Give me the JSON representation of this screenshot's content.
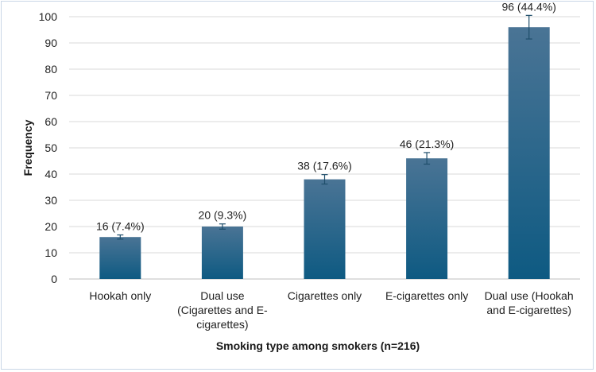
{
  "chart_data": {
    "type": "bar",
    "title": "",
    "xlabel": "Smoking type among smokers (n=216)",
    "ylabel": "Frequency",
    "ylim": [
      0,
      100
    ],
    "yticks": [
      0,
      10,
      20,
      30,
      40,
      50,
      60,
      70,
      80,
      90,
      100
    ],
    "grid": true,
    "categories": [
      [
        "Hookah only"
      ],
      [
        "Dual use",
        "(Cigarettes and E-",
        "cigarettes)"
      ],
      [
        "Cigarettes only"
      ],
      [
        "E-cigarettes only"
      ],
      [
        "Dual use (Hookah",
        "and E-cigarettes)"
      ]
    ],
    "values": [
      16,
      20,
      38,
      46,
      96
    ],
    "data_labels": [
      "16 (7.4%)",
      "20 (9.3%)",
      "38 (17.6%)",
      "46 (21.3%)",
      "96 (44.4%)"
    ],
    "error_bars": [
      [
        15.2,
        16.8
      ],
      [
        19.0,
        21.0
      ],
      [
        36.2,
        39.8
      ],
      [
        43.8,
        48.2
      ],
      [
        91.5,
        100.5
      ]
    ],
    "colors": {
      "bar_top": "#4a7495",
      "bar_bottom": "#0e5a82",
      "grid": "#d9d9d9",
      "error": "#1f4e6b"
    }
  }
}
